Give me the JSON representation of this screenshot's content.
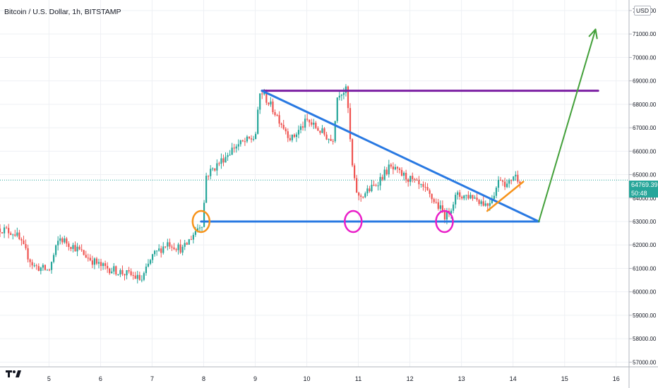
{
  "title": "Bitcoin / U.S. Dollar, 1h, BITSTAMP",
  "currency_label": "USD",
  "last_price": "64769.39",
  "countdown": "50:48",
  "colors": {
    "up": "#26a69a",
    "down": "#ef5350",
    "trendline": "#2979e2",
    "resistance": "#7b1fa2",
    "support_marker": "#f7931a",
    "circle": "#e91ec8",
    "arrow": "#43a03a",
    "grid": "#eef0f4"
  },
  "chart_data": {
    "type": "candlestick",
    "symbol": "Bitcoin / U.S. Dollar",
    "interval": "1h",
    "exchange": "BITSTAMP",
    "x_ticks": [
      5,
      6,
      7,
      8,
      9,
      10,
      11,
      12,
      13,
      14,
      15,
      16
    ],
    "xlim": [
      4.05,
      16.25
    ],
    "y_ticks": [
      57000,
      58000,
      59000,
      60000,
      61000,
      62000,
      63000,
      64000,
      65000,
      66000,
      67000,
      68000,
      69000,
      70000,
      71000,
      72000
    ],
    "ylim": [
      56800,
      72450
    ],
    "grid": true,
    "price_path": [
      [
        4.05,
        62700
      ],
      [
        4.35,
        62500
      ],
      [
        4.7,
        61100
      ],
      [
        5.0,
        60900
      ],
      [
        5.2,
        62300
      ],
      [
        5.5,
        61900
      ],
      [
        5.8,
        61400
      ],
      [
        6.0,
        61100
      ],
      [
        6.3,
        60900
      ],
      [
        6.6,
        60700
      ],
      [
        6.8,
        60500
      ],
      [
        7.0,
        61500
      ],
      [
        7.3,
        62100
      ],
      [
        7.6,
        61800
      ],
      [
        7.9,
        62800
      ],
      [
        8.0,
        63000
      ],
      [
        8.02,
        64900
      ],
      [
        8.3,
        65500
      ],
      [
        8.6,
        66200
      ],
      [
        9.0,
        66600
      ],
      [
        9.1,
        68600
      ],
      [
        9.4,
        67600
      ],
      [
        9.7,
        66500
      ],
      [
        10.0,
        67300
      ],
      [
        10.3,
        66800
      ],
      [
        10.5,
        66400
      ],
      [
        10.6,
        68500
      ],
      [
        10.78,
        68600
      ],
      [
        10.82,
        67000
      ],
      [
        10.9,
        64900
      ],
      [
        11.0,
        64000
      ],
      [
        11.3,
        64500
      ],
      [
        11.6,
        65300
      ],
      [
        12.0,
        64800
      ],
      [
        12.3,
        64300
      ],
      [
        12.5,
        63800
      ],
      [
        12.7,
        63200
      ],
      [
        12.9,
        64100
      ],
      [
        13.2,
        64100
      ],
      [
        13.5,
        63700
      ],
      [
        13.65,
        64300
      ],
      [
        13.75,
        64900
      ],
      [
        13.9,
        64500
      ],
      [
        14.0,
        65000
      ],
      [
        14.15,
        64769.39
      ]
    ],
    "last_price": 64769.39,
    "annotations": [
      {
        "kind": "resistance_line",
        "from": [
          9.13,
          68580
        ],
        "to": [
          15.65,
          68580
        ]
      },
      {
        "kind": "trendline",
        "from": [
          9.13,
          68580
        ],
        "to": [
          14.5,
          63000
        ]
      },
      {
        "kind": "support_line",
        "from": [
          7.95,
          63000
        ],
        "to": [
          14.5,
          63000
        ]
      },
      {
        "kind": "arrow",
        "from": [
          14.5,
          63000
        ],
        "to": [
          15.6,
          71200
        ]
      },
      {
        "kind": "rising_trendline",
        "from": [
          13.5,
          63450
        ],
        "to": [
          14.2,
          64700
        ]
      },
      {
        "kind": "circle_marker",
        "color": "orange",
        "at": [
          7.95,
          63000
        ]
      },
      {
        "kind": "circle_marker",
        "color": "magenta",
        "at": [
          10.9,
          63000
        ]
      },
      {
        "kind": "circle_marker",
        "color": "magenta",
        "at": [
          12.67,
          63000
        ]
      }
    ]
  }
}
